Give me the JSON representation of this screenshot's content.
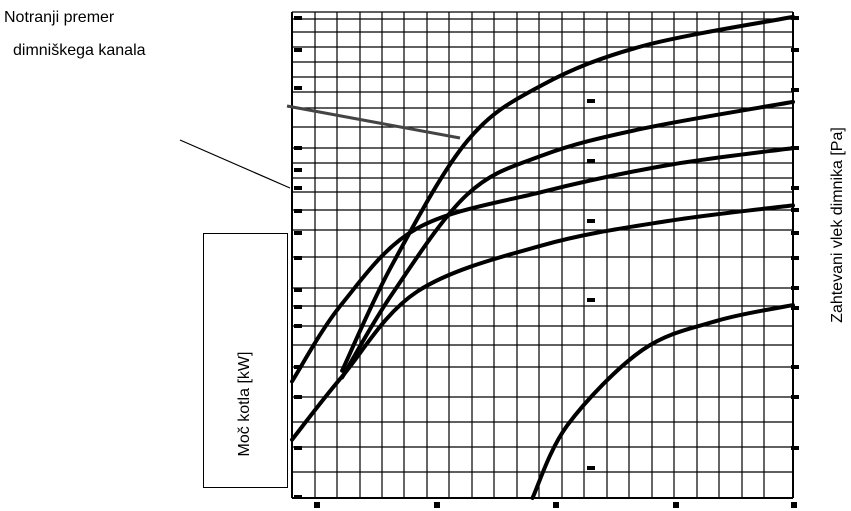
{
  "callout": {
    "line1": "Notranji premer",
    "line2": "dimniškega kanala"
  },
  "chart_data": {
    "type": "line",
    "ylabel_left": "Moč kotla [kW]",
    "ylabel_right": "Zahtevani vlek dimnika [Pa]",
    "grid": true,
    "series": [
      {
        "points": [
          [
            0.1,
            0.262
          ],
          [
            0.2,
            0.48
          ],
          [
            0.35,
            0.735
          ],
          [
            0.5,
            0.85
          ],
          [
            0.7,
            0.93
          ],
          [
            1.0,
            0.99
          ]
        ]
      },
      {
        "points": [
          [
            0.1,
            0.248
          ],
          [
            0.2,
            0.42
          ],
          [
            0.35,
            0.625
          ],
          [
            0.5,
            0.705
          ],
          [
            0.7,
            0.76
          ],
          [
            1.0,
            0.815
          ]
        ]
      },
      {
        "points": [
          [
            0.0,
            0.24
          ],
          [
            0.1,
            0.4
          ],
          [
            0.25,
            0.555
          ],
          [
            0.5,
            0.63
          ],
          [
            0.75,
            0.685
          ],
          [
            1.0,
            0.72
          ]
        ]
      },
      {
        "points": [
          [
            0.0,
            0.12
          ],
          [
            0.1,
            0.25
          ],
          [
            0.25,
            0.425
          ],
          [
            0.5,
            0.52
          ],
          [
            0.75,
            0.57
          ],
          [
            1.0,
            0.602
          ]
        ]
      },
      {
        "points": [
          [
            0.48,
            0.0
          ],
          [
            0.55,
            0.15
          ],
          [
            0.7,
            0.305
          ],
          [
            0.85,
            0.365
          ],
          [
            1.0,
            0.397
          ]
        ]
      }
    ]
  }
}
